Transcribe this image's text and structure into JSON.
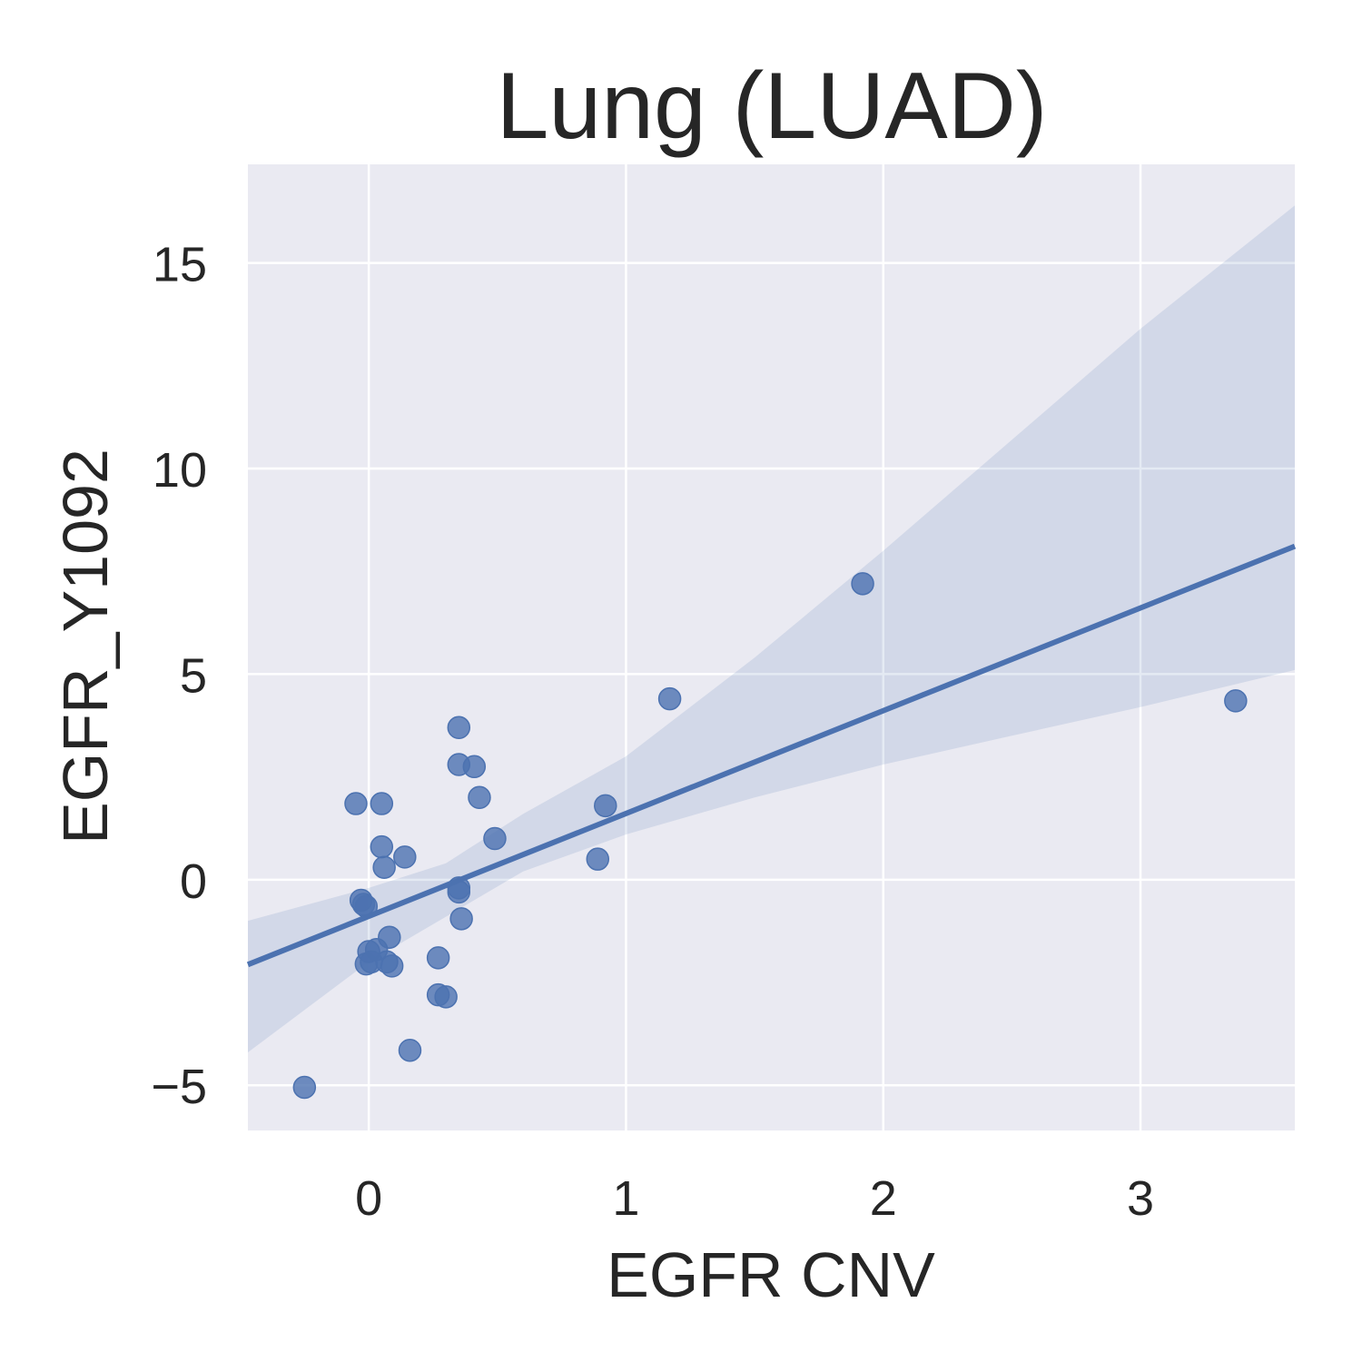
{
  "chart_data": {
    "type": "scatter",
    "title": "Lung (LUAD)",
    "xlabel": "EGFR CNV",
    "ylabel": "EGFR_Y1092",
    "xlim": [
      -0.47,
      3.6
    ],
    "ylim": [
      -6.1,
      17.4
    ],
    "x_ticks": [
      0,
      1,
      2,
      3
    ],
    "x_tick_labels": [
      "0",
      "1",
      "2",
      "3"
    ],
    "y_ticks": [
      -5,
      0,
      5,
      10,
      15
    ],
    "y_tick_labels": [
      "−5",
      "0",
      "5",
      "10",
      "15"
    ],
    "grid": true,
    "legend": "none",
    "colors": {
      "background": "#EAEAF2",
      "grid": "#FFFFFF",
      "points": "#4C72B0",
      "line": "#4C72B0",
      "band": "#4C72B0"
    },
    "series": [
      {
        "points": [
          {
            "x": -0.25,
            "y": -5.05
          },
          {
            "x": -0.05,
            "y": 1.85
          },
          {
            "x": 0.05,
            "y": 1.85
          },
          {
            "x": 0.05,
            "y": 0.8
          },
          {
            "x": 0.06,
            "y": 0.3
          },
          {
            "x": 0.14,
            "y": 0.55
          },
          {
            "x": -0.03,
            "y": -0.5
          },
          {
            "x": -0.02,
            "y": -0.6
          },
          {
            "x": -0.01,
            "y": -0.65
          },
          {
            "x": 0.08,
            "y": -1.4
          },
          {
            "x": 0.0,
            "y": -1.75
          },
          {
            "x": 0.03,
            "y": -1.7
          },
          {
            "x": -0.01,
            "y": -2.05
          },
          {
            "x": 0.01,
            "y": -2.0
          },
          {
            "x": 0.07,
            "y": -2.0
          },
          {
            "x": 0.09,
            "y": -2.1
          },
          {
            "x": 0.16,
            "y": -4.15
          },
          {
            "x": 0.27,
            "y": -1.9
          },
          {
            "x": 0.27,
            "y": -2.8
          },
          {
            "x": 0.3,
            "y": -2.85
          },
          {
            "x": 0.35,
            "y": -0.2
          },
          {
            "x": 0.35,
            "y": -0.3
          },
          {
            "x": 0.36,
            "y": -0.95
          },
          {
            "x": 0.35,
            "y": 3.7
          },
          {
            "x": 0.35,
            "y": 2.8
          },
          {
            "x": 0.41,
            "y": 2.75
          },
          {
            "x": 0.43,
            "y": 2.0
          },
          {
            "x": 0.49,
            "y": 1.0
          },
          {
            "x": 0.89,
            "y": 0.5
          },
          {
            "x": 0.92,
            "y": 1.8
          },
          {
            "x": 1.17,
            "y": 4.4
          },
          {
            "x": 1.92,
            "y": 7.2
          },
          {
            "x": 3.37,
            "y": 4.35
          }
        ]
      }
    ],
    "regression": {
      "intercept": -0.89,
      "slope": 2.5
    },
    "confidence_band": {
      "x": [
        -0.47,
        0.0,
        0.3,
        0.6,
        1.0,
        1.5,
        2.0,
        2.5,
        3.0,
        3.6
      ],
      "lower": [
        -4.2,
        -2.0,
        -0.9,
        0.2,
        1.1,
        2.0,
        2.8,
        3.5,
        4.2,
        5.1
      ],
      "upper": [
        -1.0,
        -0.2,
        0.4,
        1.6,
        3.0,
        5.4,
        8.0,
        10.7,
        13.4,
        16.4
      ]
    }
  }
}
